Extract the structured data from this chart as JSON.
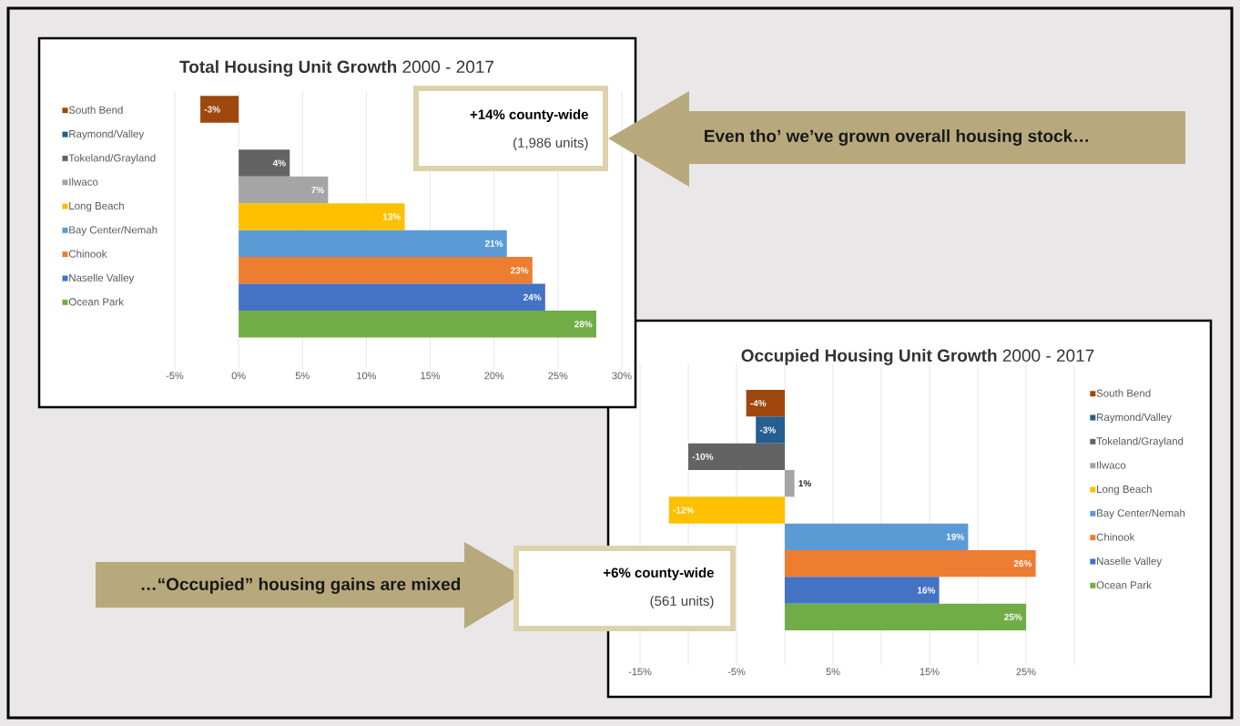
{
  "chart_data": [
    {
      "type": "bar",
      "orientation": "horizontal",
      "title": "**Total Housing Unit Growth** 2000 - 2017",
      "categories": [
        null
      ],
      "series": [
        {
          "name": "South Bend",
          "color": "#9e480e",
          "values": [
            -3
          ],
          "value_labels": [
            "-3%"
          ]
        },
        {
          "name": "Raymond/Valley",
          "color": "#255e91",
          "values": [
            null
          ],
          "value_labels": [
            null
          ]
        },
        {
          "name": "Tokeland/Grayland",
          "color": "#636363",
          "values": [
            4
          ],
          "value_labels": [
            "4%"
          ]
        },
        {
          "name": "Ilwaco",
          "color": "#a5a5a5",
          "values": [
            7
          ],
          "value_labels": [
            "7%"
          ]
        },
        {
          "name": "Long Beach",
          "color": "#ffc000",
          "values": [
            13
          ],
          "value_labels": [
            "13%"
          ]
        },
        {
          "name": "Bay Center/Nemah",
          "color": "#5b9bd5",
          "values": [
            21
          ],
          "value_labels": [
            "21%"
          ]
        },
        {
          "name": "Chinook",
          "color": "#ed7d31",
          "values": [
            23
          ],
          "value_labels": [
            "23%"
          ]
        },
        {
          "name": "Naselle Valley",
          "color": "#4472c4",
          "values": [
            24
          ],
          "value_labels": [
            "24%"
          ]
        },
        {
          "name": "Ocean Park",
          "color": "#70ad47",
          "values": [
            28
          ],
          "value_labels": [
            "28%"
          ]
        }
      ],
      "xlim": [
        -5,
        30
      ],
      "xticks": [
        {
          "value": -5,
          "label": "-5%"
        },
        {
          "value": 0,
          "label": "0%"
        },
        {
          "value": 5,
          "label": "5%"
        },
        {
          "value": 10,
          "label": "10%"
        },
        {
          "value": 15,
          "label": "15%"
        },
        {
          "value": 20,
          "label": "20%"
        },
        {
          "value": 25,
          "label": "25%"
        },
        {
          "value": 30,
          "label": "30%"
        }
      ],
      "grid": "x",
      "legend": "left",
      "tick_labels": "x",
      "annotations": [
        "+14% county-wide",
        "(1,986 units)",
        "Even tho’ we’ve grown overall housing stock…"
      ]
    },
    {
      "type": "bar",
      "orientation": "horizontal",
      "title": "**Occupied Housing Unit Growth** 2000 - 2017",
      "categories": [
        null
      ],
      "series": [
        {
          "name": "South Bend",
          "color": "#9e480e",
          "values": [
            -4
          ],
          "value_labels": [
            "-4%"
          ]
        },
        {
          "name": "Raymond/Valley",
          "color": "#255e91",
          "values": [
            -3
          ],
          "value_labels": [
            "-3%"
          ]
        },
        {
          "name": "Tokeland/Grayland",
          "color": "#636363",
          "values": [
            -10
          ],
          "value_labels": [
            "-10%"
          ]
        },
        {
          "name": "Ilwaco",
          "color": "#a5a5a5",
          "values": [
            1
          ],
          "value_labels": [
            "1%"
          ]
        },
        {
          "name": "Long Beach",
          "color": "#ffc000",
          "values": [
            -12
          ],
          "value_labels": [
            "-12%"
          ]
        },
        {
          "name": "Bay Center/Nemah",
          "color": "#5b9bd5",
          "values": [
            19
          ],
          "value_labels": [
            "19%"
          ]
        },
        {
          "name": "Chinook",
          "color": "#ed7d31",
          "values": [
            26
          ],
          "value_labels": [
            "26%"
          ]
        },
        {
          "name": "Naselle Valley",
          "color": "#4472c4",
          "values": [
            16
          ],
          "value_labels": [
            "16%"
          ]
        },
        {
          "name": "Ocean Park",
          "color": "#70ad47",
          "values": [
            25
          ],
          "value_labels": [
            "25%"
          ]
        }
      ],
      "xlim": [
        -15,
        30
      ],
      "xticks": [
        {
          "value": -15,
          "label": "-15%"
        },
        {
          "value": -10,
          "label": null
        },
        {
          "value": -5,
          "label": "-5%"
        },
        {
          "value": 0,
          "label": null
        },
        {
          "value": 5,
          "label": "5%"
        },
        {
          "value": 10,
          "label": null
        },
        {
          "value": 15,
          "label": "15%"
        },
        {
          "value": 20,
          "label": null
        },
        {
          "value": 25,
          "label": "25%"
        },
        {
          "value": 30,
          "label": null
        }
      ],
      "grid": "x",
      "legend": "right",
      "tick_labels": "x",
      "annotations": [
        "+6% county-wide",
        "(561 units)",
        "…“Occupied” housing gains are mixed"
      ]
    }
  ]
}
